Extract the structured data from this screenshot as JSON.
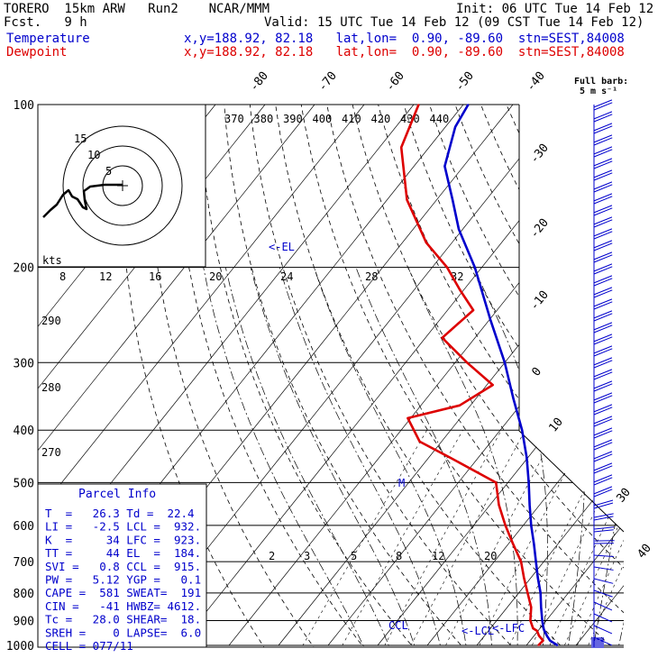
{
  "header": {
    "model": "TORERO  15km ARW   Run2    NCAR/MMM",
    "init": "Init: 06 UTC Tue 14 Feb 12",
    "fcst": "Fcst.   9 h",
    "valid": "Valid: 15 UTC Tue 14 Feb 12 (09 CST Tue 14 Feb 12)",
    "temp_label": "Temperature",
    "temp_loc": "x,y=188.92, 82.18   lat,lon=  0.90, -89.60  stn=SEST,84008",
    "dew_label": "Dewpoint",
    "dew_loc": "x,y=188.92, 82.18   lat,lon=  0.90, -89.60  stn=SEST,84008"
  },
  "colors": {
    "temperature": "#0000cc",
    "dewpoint": "#dd0000",
    "grid": "#000000"
  },
  "barb_legend": {
    "line1": "Full barb:",
    "line2": "5 m s⁻¹"
  },
  "parcel_info": {
    "title": "Parcel Info",
    "rows": [
      "T  =   26.3 Td =  22.4",
      "LI =   -2.5 LCL =  932.",
      "K  =     34 LFC =  923.",
      "TT =     44 EL  =  184.",
      "SVI =   0.8 CCL =  915.",
      "PW =   5.12 YGP =   0.1",
      "CAPE =  581 SWEAT=  191",
      "CIN =   -41 HWBZ= 4612.",
      "Tc =   28.0 SHEAR=  18.",
      "SREH =    0 LAPSE=  6.0",
      "CELL = 077/11"
    ]
  },
  "hodograph": {
    "units": "kts",
    "ring_labels": [
      "5",
      "10",
      "15"
    ]
  },
  "chart_data": {
    "type": "line",
    "ylabel": "",
    "y_axis": {
      "scale": "log-pressure",
      "ylim": [
        1000,
        100
      ],
      "ticks": [
        "100",
        "200",
        "300",
        "400",
        "500",
        "600",
        "700",
        "800",
        "900",
        "1000"
      ]
    },
    "isotherm_labels": [
      "-80",
      "-70",
      "-60",
      "-50",
      "-40",
      "-30",
      "-20",
      "-10",
      "0",
      "10",
      "30",
      "40"
    ],
    "theta_e_labels": [
      "370",
      "380",
      "390",
      "400",
      "410",
      "420",
      "430",
      "440"
    ],
    "mixing_ratio_labels": [
      "8",
      "12",
      "16",
      "20",
      "24",
      "28",
      "32"
    ],
    "mixing_ratio_labels_lower": [
      "2",
      "3",
      "5",
      "8",
      "12",
      "20"
    ],
    "dry_adiabat_labels": [
      "290",
      "280",
      "270"
    ],
    "annotations": [
      "<-EL",
      "M",
      "CCL",
      "<-LCL",
      "<-LFC"
    ],
    "series": [
      {
        "name": "Temperature",
        "p": [
          1000,
          980,
          960,
          940,
          930,
          900,
          850,
          800,
          750,
          700,
          650,
          600,
          550,
          500,
          450,
          400,
          350,
          300,
          250,
          200,
          170,
          150,
          130,
          110,
          100
        ],
        "t": [
          26.3,
          24.0,
          22.6,
          21.3,
          20.7,
          19.2,
          16.8,
          14.4,
          11.4,
          8.4,
          5.2,
          1.6,
          -2.0,
          -5.8,
          -10.2,
          -15.6,
          -22.4,
          -30.0,
          -39.8,
          -51.4,
          -60.8,
          -66.8,
          -73.8,
          -78.0,
          -79.0
        ]
      },
      {
        "name": "Dewpoint",
        "p": [
          1000,
          980,
          960,
          940,
          930,
          900,
          850,
          800,
          750,
          700,
          650,
          600,
          550,
          500,
          450,
          420,
          380,
          360,
          330,
          300,
          270,
          240,
          220,
          200,
          180,
          150,
          120,
          100
        ],
        "t": [
          22.4,
          22.6,
          21.0,
          19.8,
          18.6,
          16.8,
          14.8,
          11.8,
          8.6,
          5.4,
          1.0,
          -3.6,
          -8.2,
          -12.4,
          -25.6,
          -34.4,
          -40.6,
          -32.2,
          -28.8,
          -37.6,
          -46.6,
          -44.8,
          -50.8,
          -57.0,
          -65.2,
          -76.0,
          -85.6,
          -89.0
        ]
      }
    ]
  }
}
